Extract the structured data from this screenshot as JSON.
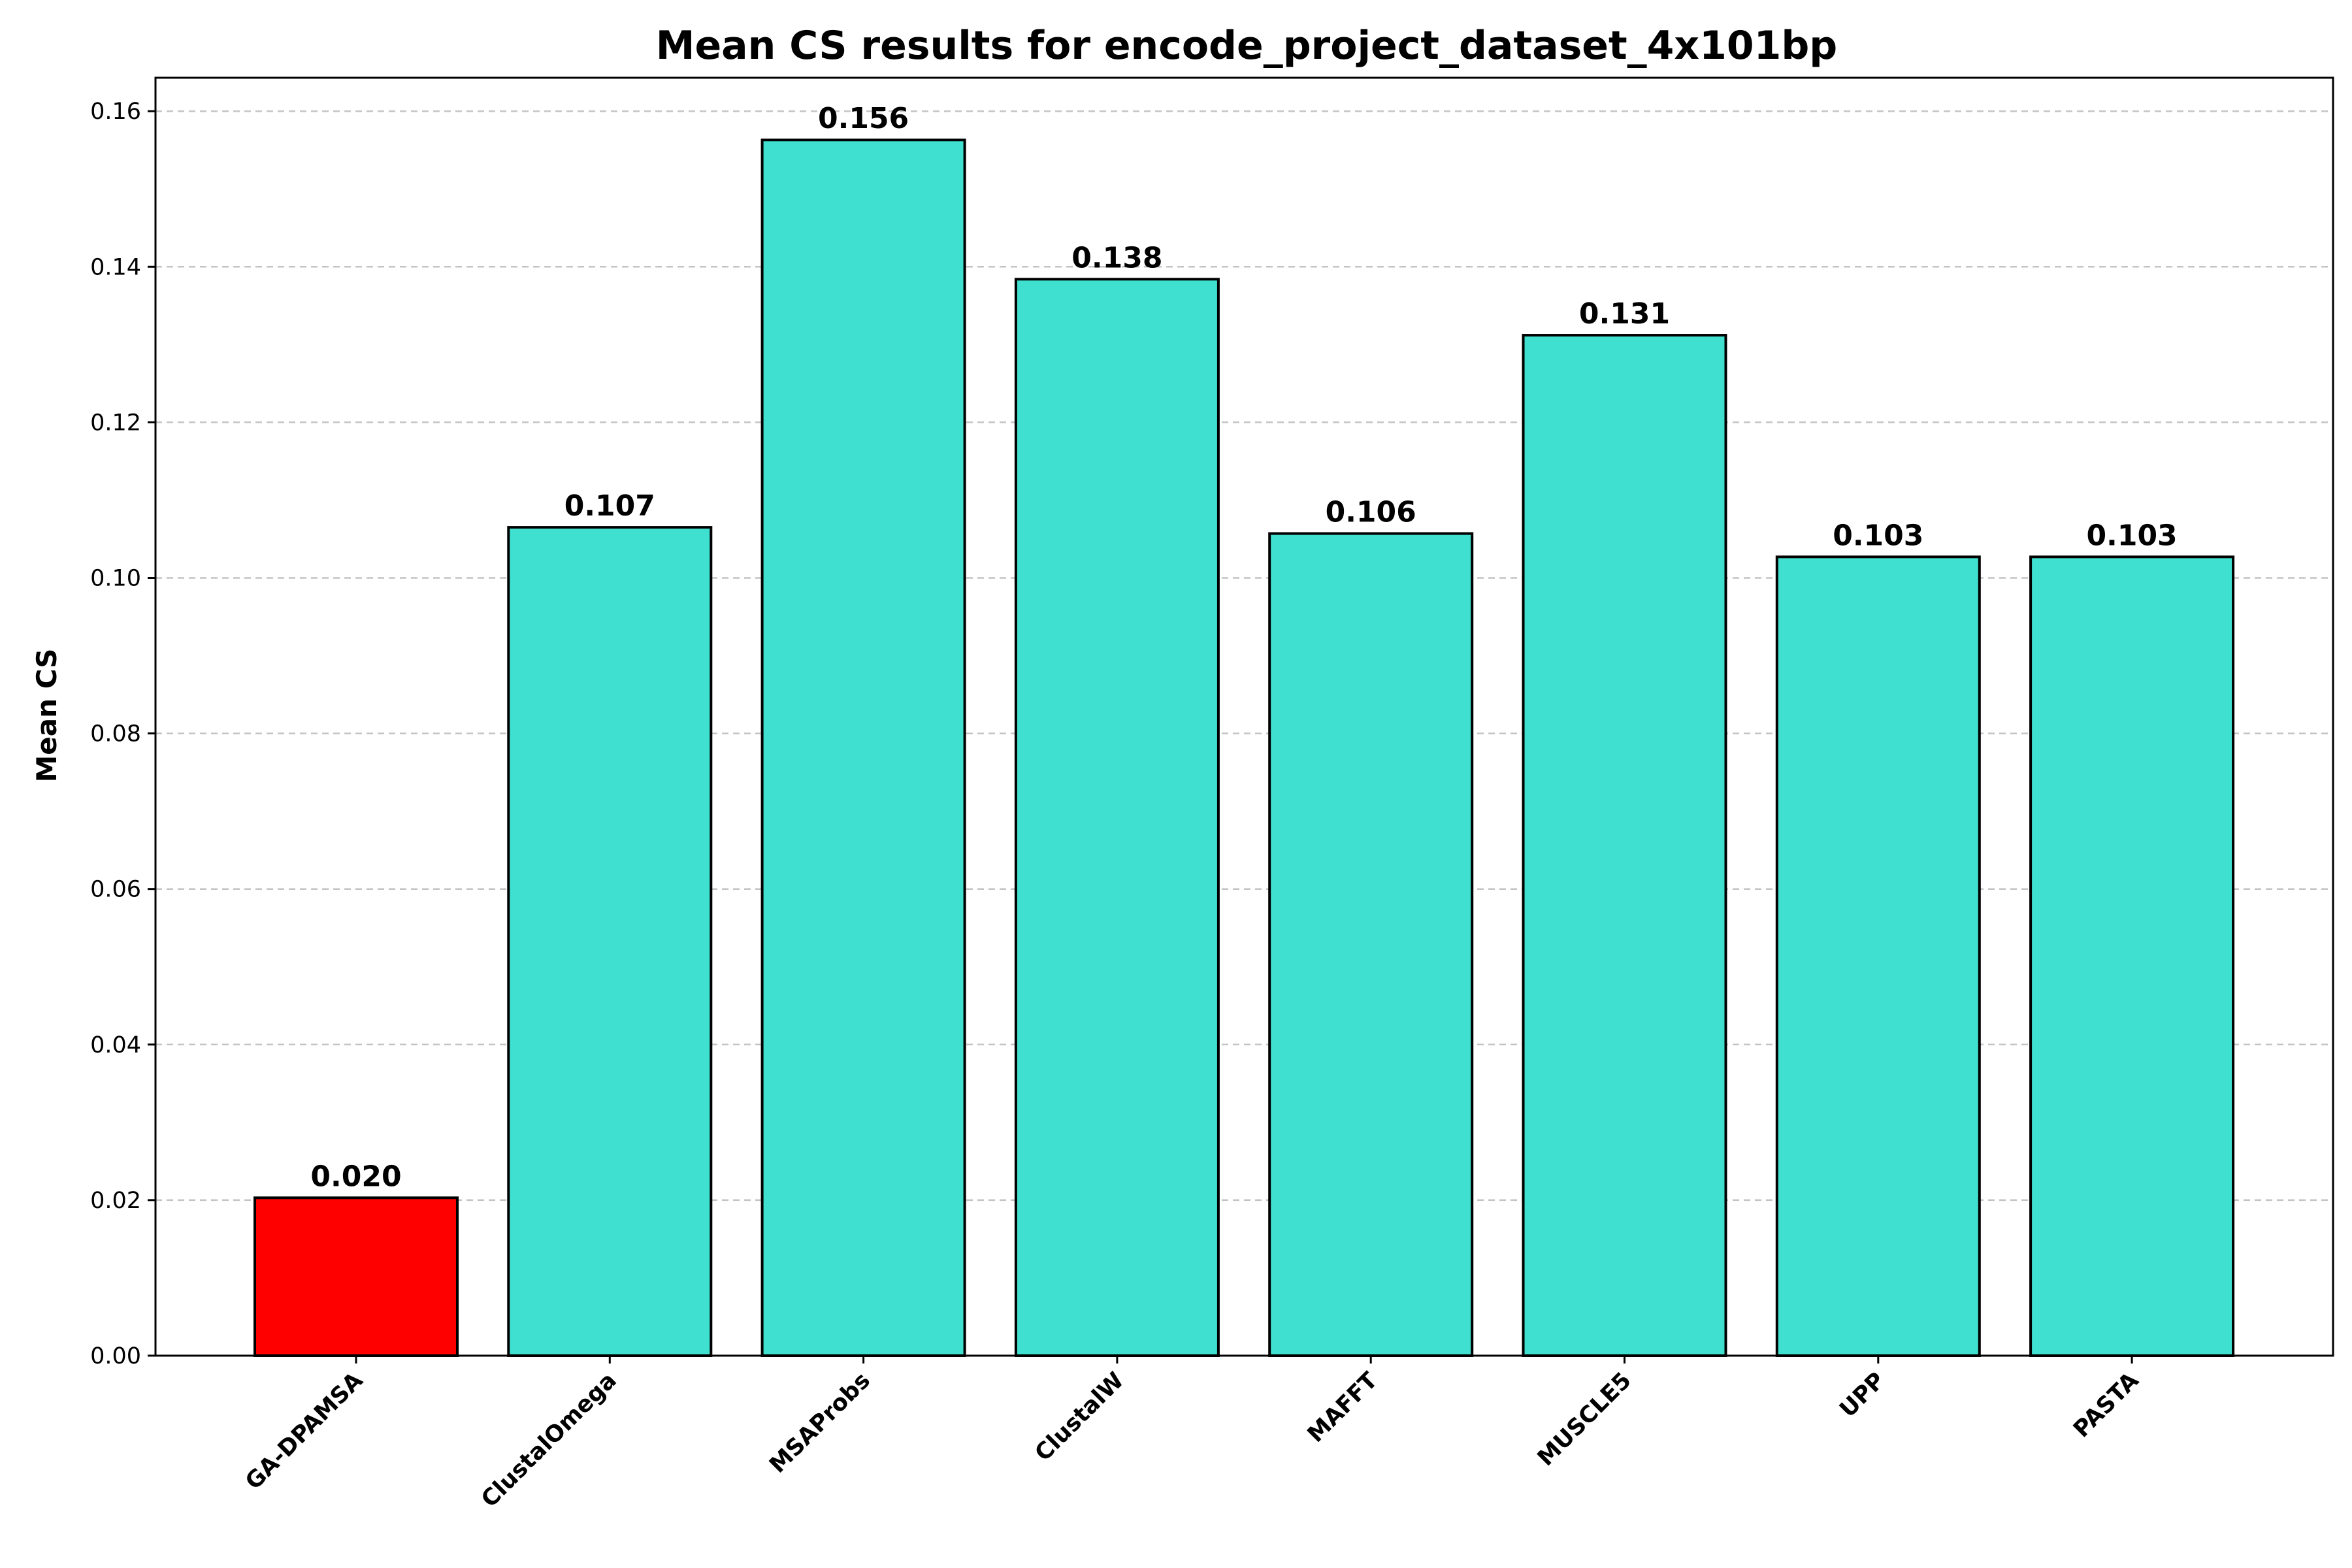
{
  "chart_data": {
    "type": "bar",
    "title": "Mean CS results for encode_project_dataset_4x101bp",
    "xlabel": "",
    "ylabel": "Mean CS",
    "categories": [
      "GA-DPAMSA",
      "ClustalOmega",
      "MSAProbs",
      "ClustalW",
      "MAFFT",
      "MUSCLE5",
      "UPP",
      "PASTA"
    ],
    "values": [
      0.0203,
      0.1065,
      0.1563,
      0.1384,
      0.1057,
      0.1312,
      0.1027,
      0.1027
    ],
    "value_labels": [
      "0.020",
      "0.107",
      "0.156",
      "0.138",
      "0.106",
      "0.131",
      "0.103",
      "0.103"
    ],
    "bar_colors": [
      "#ff0000",
      "#40e0d0",
      "#40e0d0",
      "#40e0d0",
      "#40e0d0",
      "#40e0d0",
      "#40e0d0",
      "#40e0d0"
    ],
    "edge_color": "#000000",
    "ylim": [
      0,
      0.1643
    ],
    "yticks": [
      0.0,
      0.02,
      0.04,
      0.06,
      0.08,
      0.1,
      0.12,
      0.14,
      0.16
    ],
    "ytick_labels": [
      "0.00",
      "0.02",
      "0.04",
      "0.06",
      "0.08",
      "0.10",
      "0.12",
      "0.14",
      "0.16"
    ],
    "grid": "y-dashed",
    "xtick_rotation_deg": 45
  }
}
